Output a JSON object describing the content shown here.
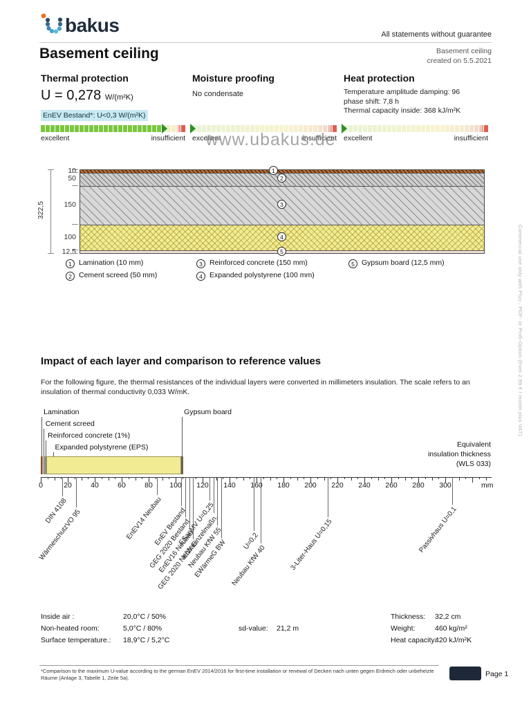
{
  "colors": {
    "highlight": "#c8e9f4",
    "good": "#7cc63e",
    "bad": "#dd5f52",
    "marker": "#2f8f2a",
    "insulation": "#f1ec94",
    "navy": "#1e2838"
  },
  "meta": {
    "disclaimer": "All statements without guarantee",
    "watermark": "www.ubakus.de",
    "side_note": "Commercial use only with Plus-, PDF- or Profi-Option (from 2.99 € / month plus VAT).",
    "footnote": "*Comparison to the maximum U-value according to the german EnEV 2014/2016 for  first-time installation or renewal of Decken nach unten gegen Erdreich oder unbeheizte Räume (Anlage 3, Tabelle 1, Zeile 5a).",
    "page_label": "Page 1"
  },
  "header": {
    "logo_text": "bakus",
    "title": "Basement ceiling",
    "doc_name": "Basement ceiling",
    "created": "created on 5.5.2021"
  },
  "ratings": {
    "scale": {
      "left": "excellent",
      "right": "insufficient"
    },
    "thermal": {
      "title": "Thermal protection",
      "value": "U = 0,278",
      "unit": "W/(m²K)",
      "requirement": "EnEV Bestand*: U<0,3 W/(m²K)",
      "marker_percent": 85,
      "filled_percent": 85
    },
    "moisture": {
      "title": "Moisture proofing",
      "status": "No condensate",
      "marker_percent": 0
    },
    "heat": {
      "title": "Heat protection",
      "line1": "Temperature amplitude damping: 96",
      "line2": "phase shift: 7,8 h",
      "line3": "Thermal capacity inside: 368 kJ/m²K",
      "marker_percent": 0
    }
  },
  "construction": {
    "total_label": "322,5",
    "layers": [
      {
        "id": "lamination",
        "num": "1",
        "dim": "10",
        "mm": 10,
        "legend": "Lamination (10 mm)"
      },
      {
        "id": "screed",
        "num": "2",
        "dim": "50",
        "mm": 50,
        "legend": "Cement screed (50 mm)"
      },
      {
        "id": "concrete",
        "num": "3",
        "dim": "150",
        "mm": 150,
        "legend": "Reinforced concrete (150 mm)"
      },
      {
        "id": "eps",
        "num": "4",
        "dim": "100",
        "mm": 100,
        "legend": "Expanded polystyrene (100 mm)"
      },
      {
        "id": "gypsum",
        "num": "5",
        "dim": "12,5",
        "mm": 12.5,
        "legend": "Gypsum board (12,5 mm)"
      }
    ]
  },
  "chart_data": {
    "type": "bar",
    "title": "Impact of each layer and comparison to reference values",
    "description": "For the following figure, the thermal resistances of the individual layers were converted in millimeters insulation. The scale refers to an insulation of thermal conductivity 0,033 W/mK.",
    "x_unit": "mm",
    "xlim": [
      0,
      334
    ],
    "axis_ticks": [
      0,
      20,
      40,
      60,
      80,
      100,
      120,
      140,
      160,
      180,
      200,
      220,
      240,
      260,
      280,
      300
    ],
    "equivalent_label_1": "Equivalent",
    "equivalent_label_2": "insulation thickness",
    "equivalent_label_3": "(WLS 033)",
    "layers": [
      {
        "id": "lamination",
        "name": "Lamination",
        "from_mm": 0,
        "to_mm": 1.2
      },
      {
        "id": "screed",
        "name": "Cement screed",
        "from_mm": 1.2,
        "to_mm": 2.4
      },
      {
        "id": "concrete",
        "name": "Reinforced concrete (1%)",
        "from_mm": 2.4,
        "to_mm": 4.3
      },
      {
        "id": "eps",
        "name": "Expanded polystyrene (EPS)",
        "from_mm": 4.3,
        "to_mm": 104.3
      },
      {
        "id": "gypsum",
        "name": "Gypsum board",
        "from_mm": 104.3,
        "to_mm": 105.8
      }
    ],
    "layer_labels": [
      {
        "name": "Lamination",
        "mm": 0.6,
        "row": 0
      },
      {
        "name": "Cement screed",
        "mm": 1.9,
        "row": 1
      },
      {
        "name": "Reinforced concrete (1%)",
        "mm": 3.6,
        "row": 2
      },
      {
        "name": "Expanded polystyrene (EPS)",
        "mm": 9,
        "row": 3
      },
      {
        "name": "Gypsum board",
        "mm": 104.7,
        "row": 0
      }
    ],
    "references": [
      {
        "label": "DIN 4108",
        "mm": 16,
        "depth": 28
      },
      {
        "label": "WärmeschutzVO 95",
        "mm": 26,
        "depth": 44
      },
      {
        "label": "EnEV14 Neubau",
        "mm": 86,
        "depth": 26
      },
      {
        "label": "EnEV Bestand",
        "mm": 104,
        "depth": 42
      },
      {
        "label": "GEG 2020 Bestand",
        "mm": 107,
        "depth": 58
      },
      {
        "label": "EnEV16 Neubau",
        "mm": 110,
        "depth": 74
      },
      {
        "label": "GEG 2020 Neubau",
        "mm": 113,
        "depth": 90
      },
      {
        "label": "ESanMV U=0,25",
        "mm": 125,
        "depth": 34
      },
      {
        "label": "KfW Einzelmaßn.",
        "mm": 128,
        "depth": 52
      },
      {
        "label": "Neubau KfW 55",
        "mm": 131,
        "depth": 70
      },
      {
        "label": "EWärmeG BW",
        "mm": 134,
        "depth": 88
      },
      {
        "label": "U=0,2",
        "mm": 158,
        "depth": 78
      },
      {
        "label": "Neubau KfW 40",
        "mm": 163,
        "depth": 96
      },
      {
        "label": "3-Liter-Haus U=0,15",
        "mm": 213,
        "depth": 58
      },
      {
        "label": "Passivhaus U=0,1",
        "mm": 305,
        "depth": 40
      }
    ]
  },
  "summary": {
    "left": [
      {
        "label": "Inside air :",
        "value": "20,0°C / 50%"
      },
      {
        "label": "Non-heated room:",
        "value": "5,0°C / 80%"
      },
      {
        "label": "Surface temperature.:",
        "value": "18,9°C / 5,2°C"
      }
    ],
    "sd_label": "sd-value:",
    "sd_value": "21,2 m",
    "right": [
      {
        "label": "Thickness:",
        "value": "32,2 cm"
      },
      {
        "label": "Weight:",
        "value": "460 kg/m²"
      },
      {
        "label": "Heat capacity:",
        "value": "420 kJ/m²K"
      }
    ]
  }
}
